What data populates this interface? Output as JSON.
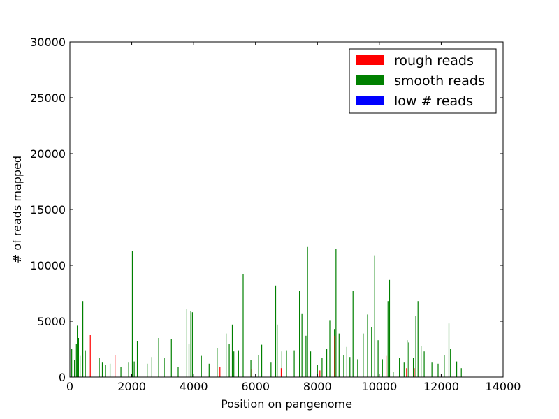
{
  "chart_data": {
    "type": "bar",
    "xlabel": "Position on pangenome",
    "ylabel": "# of reads mapped",
    "xlim": [
      0,
      14000
    ],
    "ylim": [
      0,
      30000
    ],
    "x_ticks": [
      0,
      2000,
      4000,
      6000,
      8000,
      10000,
      12000,
      14000
    ],
    "y_ticks": [
      0,
      5000,
      10000,
      15000,
      20000,
      25000,
      30000
    ],
    "grid": false,
    "legend_position": "top-right",
    "series": [
      {
        "name": "rough reads",
        "color": "#ff0000",
        "x": [
          660,
          1460,
          4850,
          5880,
          6830,
          8080,
          8560,
          10220,
          10880,
          11130
        ],
        "values": [
          3800,
          2000,
          900,
          700,
          800,
          600,
          3700,
          1900,
          800,
          800
        ]
      },
      {
        "name": "smooth reads",
        "color": "#008000",
        "x": [
          60,
          150,
          210,
          240,
          280,
          330,
          420,
          500,
          950,
          1050,
          1150,
          1300,
          1650,
          1900,
          2020,
          2080,
          2180,
          2500,
          2650,
          2870,
          3050,
          3280,
          3500,
          3780,
          3850,
          3910,
          3960,
          4250,
          4500,
          4760,
          5050,
          5150,
          5250,
          5300,
          5450,
          5600,
          5850,
          6100,
          6200,
          6500,
          6650,
          6700,
          6850,
          7000,
          7250,
          7420,
          7500,
          7630,
          7680,
          7780,
          8000,
          8150,
          8300,
          8400,
          8550,
          8600,
          8700,
          8850,
          8950,
          9050,
          9150,
          9300,
          9480,
          9620,
          9750,
          9850,
          9960,
          10100,
          10280,
          10330,
          10450,
          10650,
          10800,
          10900,
          10950,
          11100,
          11180,
          11250,
          11350,
          11450,
          11700,
          11900,
          12100,
          12250,
          12300,
          12500,
          12650
        ],
        "values": [
          2500,
          1500,
          3000,
          4600,
          3500,
          1900,
          6800,
          2400,
          1700,
          1300,
          1100,
          1200,
          900,
          1300,
          11300,
          1400,
          3200,
          1200,
          1800,
          3500,
          1700,
          3400,
          900,
          6100,
          3000,
          5900,
          5800,
          1900,
          1200,
          2600,
          3900,
          3000,
          4700,
          2300,
          2400,
          9200,
          1500,
          2000,
          2900,
          1300,
          8200,
          4700,
          2300,
          2400,
          2400,
          7700,
          5700,
          3700,
          11700,
          2300,
          1100,
          1700,
          2500,
          5100,
          4300,
          11500,
          3900,
          2000,
          2700,
          1800,
          7700,
          1600,
          3900,
          5600,
          4500,
          10900,
          3300,
          1600,
          6800,
          8700,
          500,
          1700,
          1300,
          3300,
          3100,
          1700,
          5500,
          6800,
          2800,
          2300,
          1300,
          1200,
          2000,
          4800,
          2500,
          1400,
          800
        ]
      },
      {
        "name": "low # reads",
        "color": "#0000ff",
        "x": [],
        "values": []
      }
    ]
  }
}
